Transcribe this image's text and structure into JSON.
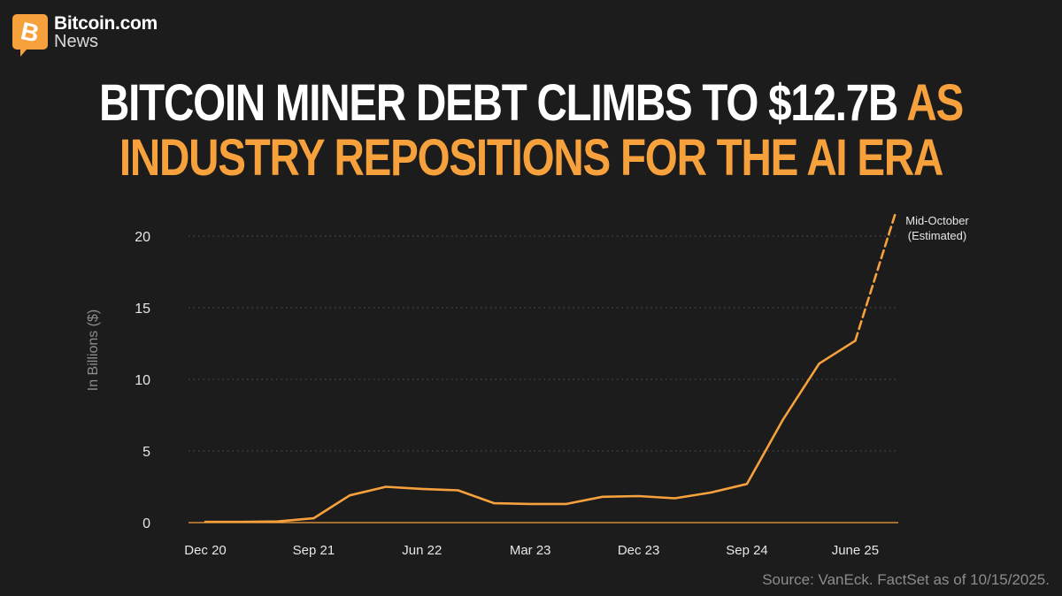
{
  "brand": {
    "name": "Bitcoin.com",
    "sub": "News",
    "icon": "bitcoin-logo-icon",
    "accent": "#f7a13d"
  },
  "headline": {
    "part1": "BITCOIN MINER DEBT CLIMBS TO $12.7B",
    "part2": "AS",
    "line2": "INDUSTRY REPOSITIONS FOR THE AI ERA"
  },
  "chart_data": {
    "type": "line",
    "title": "",
    "ylabel": "In Billions ($)",
    "xlabel": "",
    "ylim": [
      0,
      20
    ],
    "yticks": [
      0,
      5,
      10,
      15,
      20
    ],
    "grid": true,
    "x_tick_labels": [
      "Dec 20",
      "Sep 21",
      "Jun 22",
      "Mar 23",
      "Dec 23",
      "Sep 24",
      "June 25"
    ],
    "line_color": "#f7a13d",
    "series": [
      {
        "name": "",
        "style": "solid",
        "x": [
          "Dec 20",
          "Mar 21",
          "Jun 21",
          "Sep 21",
          "Dec 21",
          "Mar 22",
          "Jun 22",
          "Sep 22",
          "Dec 22",
          "Mar 23",
          "Jun 23",
          "Sep 23",
          "Dec 23",
          "Mar 24",
          "Jun 24",
          "Sep 24",
          "Dec 24",
          "Mar 25",
          "June 25"
        ],
        "values": [
          0.05,
          0.05,
          0.08,
          0.3,
          1.9,
          2.5,
          2.35,
          2.25,
          1.35,
          1.3,
          1.3,
          1.8,
          1.85,
          1.7,
          2.1,
          2.7,
          7.2,
          11.1,
          12.7
        ]
      },
      {
        "name": "",
        "style": "dashed",
        "x": [
          "June 25",
          "Mid-October"
        ],
        "values": [
          12.7,
          21.5
        ]
      }
    ],
    "annotation": {
      "line1": "Mid-October",
      "line2": "(Estimated)"
    }
  },
  "source": "Source: VanEck. FactSet as of 10/15/2025."
}
